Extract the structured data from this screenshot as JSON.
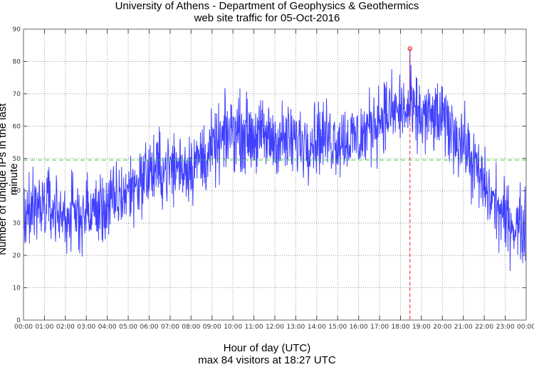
{
  "chart_data": {
    "type": "line",
    "title": "University of Athens - Department of Geophysics & Geothermics",
    "subtitle": "web site traffic for 05-Oct-2016",
    "xlabel": "Hour of day (UTC)",
    "annotation": "max 84 visitors at 18:27 UTC",
    "ylabel": "Number of unique IPs in the last minute",
    "ylim": [
      0,
      90
    ],
    "yticks": [
      "0",
      "10",
      "20",
      "30",
      "40",
      "50",
      "60",
      "70",
      "80",
      "90"
    ],
    "xticks": [
      "00:00",
      "01:00",
      "02:00",
      "03:00",
      "04:00",
      "05:00",
      "06:00",
      "07:00",
      "08:00",
      "09:00",
      "10:00",
      "11:00",
      "12:00",
      "13:00",
      "14:00",
      "15:00",
      "16:00",
      "17:00",
      "18:00",
      "19:00",
      "20:00",
      "21:00",
      "22:00",
      "23:00",
      "00:00"
    ],
    "xlim_minutes": [
      0,
      1440
    ],
    "grid": true,
    "mean_line": 49.5,
    "peak": {
      "minute": 1107,
      "value": 84,
      "time": "18:27"
    },
    "series": [
      {
        "name": "unique IPs per minute",
        "resolution": "1 minute",
        "hourly_mean_values": [
          34,
          36,
          32,
          33,
          35,
          40,
          46,
          47,
          48,
          52,
          59,
          57,
          56,
          55,
          57,
          56,
          56,
          63,
          65,
          63,
          62,
          55,
          41,
          31,
          28
        ],
        "noise_amplitude": 7
      }
    ],
    "colors": {
      "series": "#0000ff",
      "mean_line": "#33cc33",
      "peak": "#ee2222",
      "grid": "#999999",
      "axis": "#808080"
    }
  }
}
